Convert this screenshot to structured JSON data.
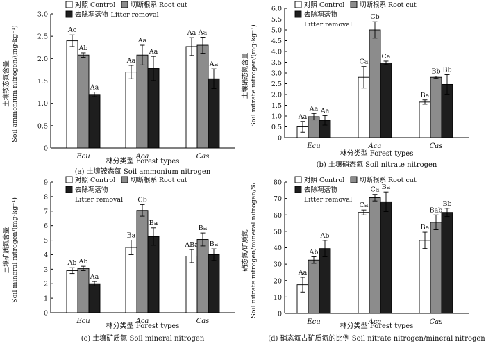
{
  "colors": {
    "control": "#ffffff",
    "root_cut": "#8c8c8c",
    "litter_removal": "#1e1e1e",
    "axis": "#000000"
  },
  "chart_data": [
    {
      "id": "a",
      "type": "bar",
      "categories": [
        "Ecu",
        "Aca",
        "Cas"
      ],
      "series": [
        {
          "name": "对照 Control",
          "values": [
            2.4,
            1.7,
            2.27
          ],
          "errors": [
            0.13,
            0.15,
            0.2
          ],
          "labels": [
            "Ac",
            "Aa",
            "Aa"
          ]
        },
        {
          "name": "切断根系 Root cut",
          "values": [
            2.08,
            2.08,
            2.3
          ],
          "errors": [
            0.05,
            0.22,
            0.18
          ],
          "labels": [
            "Ab",
            "Aa",
            "Aa"
          ]
        },
        {
          "name": "去除凋落物 Litter removal",
          "values": [
            1.2,
            1.78,
            1.55
          ],
          "errors": [
            0.05,
            0.27,
            0.22
          ],
          "labels": [
            "Aa",
            "Aa",
            "Aa"
          ]
        }
      ],
      "ylim": [
        0,
        3.0
      ],
      "yticks": [
        "0",
        "0.5",
        "1.0",
        "1.5",
        "2.0",
        "2.5",
        "3.0"
      ],
      "ylabel_cn": "土壤铵态氮含量",
      "ylabel_en": "Soil ammonium nitrogen/(mg·kg⁻¹)",
      "xlabel": "林分类型 Forest types",
      "caption": "(a) 土壤铵态氮 Soil  ammonium nitrogen"
    },
    {
      "id": "b",
      "type": "bar",
      "categories": [
        "Ecu",
        "Aca",
        "Cas"
      ],
      "series": [
        {
          "name": "对照 Control",
          "values": [
            0.5,
            2.8,
            1.65
          ],
          "errors": [
            0.25,
            0.5,
            0.1
          ],
          "labels": [
            "Aa",
            "Ca",
            "Ba"
          ]
        },
        {
          "name": "切断根系 Root cut",
          "values": [
            0.97,
            5.0,
            2.8
          ],
          "errors": [
            0.15,
            0.38,
            0.05
          ],
          "labels": [
            "Aa",
            "Cb",
            "Bb"
          ]
        },
        {
          "name": "去除凋落物 Litter removal",
          "values": [
            0.8,
            3.47,
            2.47
          ],
          "errors": [
            0.22,
            0.08,
            0.45
          ],
          "labels": [
            "Aa",
            "Ca",
            "Bb"
          ]
        }
      ],
      "ylim": [
        0,
        6.0
      ],
      "yticks": [
        "0",
        "0.5",
        "1.0",
        "1.5",
        "2.0",
        "2.5",
        "3.0",
        "3.5",
        "4.0",
        "4.5",
        "5.0",
        "5.5",
        "6.0"
      ],
      "ylabel_cn": "土壤硝态氮含量",
      "ylabel_en": "Soil nitrate nitrogen/(mg·kg⁻¹)",
      "xlabel": "林分类型 Forest types",
      "caption": "(b) 土壤硝态氮 Soil nitrate nitrogen"
    },
    {
      "id": "c",
      "type": "bar",
      "categories": [
        "Ecu",
        "Aca",
        "Cas"
      ],
      "series": [
        {
          "name": "对照 Control",
          "values": [
            2.9,
            4.5,
            3.9
          ],
          "errors": [
            0.2,
            0.5,
            0.45
          ],
          "labels": [
            "Ab",
            "Ba",
            "ABa"
          ]
        },
        {
          "name": "切断根系 Root cut",
          "values": [
            3.05,
            7.05,
            5.05
          ],
          "errors": [
            0.15,
            0.4,
            0.45
          ],
          "labels": [
            "Ab",
            "Cb",
            "Ba"
          ]
        },
        {
          "name": "去除凋落物 Litter removal",
          "values": [
            2.0,
            5.25,
            4.0
          ],
          "errors": [
            0.15,
            0.6,
            0.4
          ],
          "labels": [
            "Aa",
            "Ba",
            "Ba"
          ]
        }
      ],
      "ylim": [
        0,
        9
      ],
      "yticks": [
        "0",
        "1",
        "2",
        "3",
        "4",
        "5",
        "6",
        "7",
        "8",
        "9"
      ],
      "ylabel_cn": "土壤矿质氮含量",
      "ylabel_en": "Soil mineral nitrogen/(mg·kg⁻¹)",
      "xlabel": "林分类型 Forest types",
      "caption": "(c) 土壤矿质氮 Soil mineral nitrogen"
    },
    {
      "id": "d",
      "type": "bar",
      "categories": [
        "Ecu",
        "Aca",
        "Cas"
      ],
      "series": [
        {
          "name": "对照 Control",
          "values": [
            17.5,
            61.5,
            44.5
          ],
          "errors": [
            4.5,
            1.5,
            5.0
          ],
          "labels": [
            "Aa",
            "Ca",
            "Ba"
          ]
        },
        {
          "name": "切断根系 Root cut",
          "values": [
            32.5,
            70.5,
            55.5
          ],
          "errors": [
            2.0,
            2.0,
            4.5
          ],
          "labels": [
            "Ab",
            "Ca",
            "Bab"
          ]
        },
        {
          "name": "去除凋落物 Litter removal",
          "values": [
            39.5,
            68.0,
            61.5
          ],
          "errors": [
            5.0,
            6.0,
            2.5
          ],
          "labels": [
            "Ab",
            "Ba",
            "Bb"
          ]
        }
      ],
      "ylim": [
        0,
        80
      ],
      "yticks": [
        "0",
        "10",
        "20",
        "30",
        "40",
        "50",
        "60",
        "70",
        "80"
      ],
      "ylabel_cn": "硝态氮/矿质氮",
      "ylabel_en": "Soil nitrate nitrogen/mineral nitrogen/%",
      "xlabel": "林分类型 Forest types",
      "caption": "(d) 硝态氮占矿质氮的比例 Soil nitrate nitrogen/mineral nitrogen"
    }
  ]
}
